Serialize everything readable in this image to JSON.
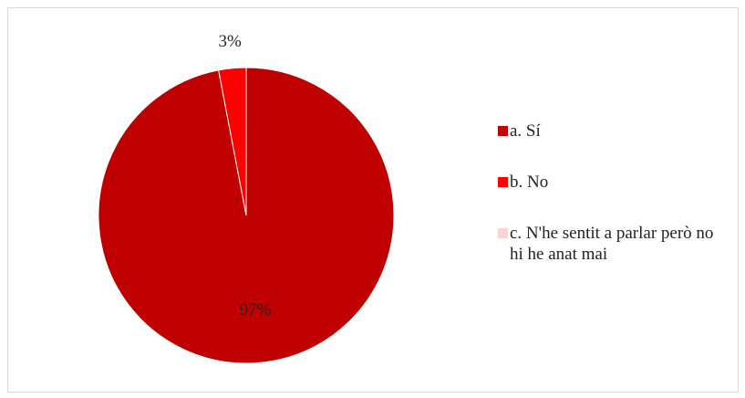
{
  "chart_data": {
    "type": "pie",
    "categories": [
      "a. Sí",
      "b. No",
      "c. N'he sentit a parlar però no hi he anat mai"
    ],
    "values": [
      97,
      3,
      0
    ],
    "value_labels": [
      "97%",
      "3%",
      null
    ],
    "colors": [
      "#C00000",
      "#FF0000",
      "#FAD4D4"
    ],
    "legend": "right"
  }
}
